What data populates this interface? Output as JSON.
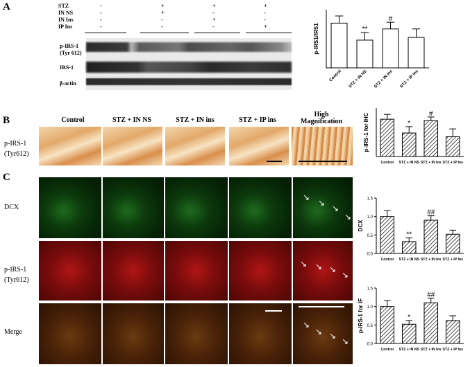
{
  "panel_letters": {
    "a": "A",
    "b": "B",
    "c": "C"
  },
  "panel_a": {
    "treatment_rows": [
      {
        "name": "STZ",
        "signs": [
          "-",
          "+",
          "+",
          "+"
        ]
      },
      {
        "name": "IN NS",
        "signs": [
          "-",
          "+",
          "-",
          "-"
        ]
      },
      {
        "name": "IN Ins",
        "signs": [
          "-",
          "-",
          "+",
          "-"
        ]
      },
      {
        "name": "IP Ins",
        "signs": [
          "-",
          "-",
          "-",
          "+"
        ]
      }
    ],
    "blot_labels": {
      "pirs": "p-IRS-1",
      "pirs_site": "(Tyr 612)",
      "irs": "IRS-1",
      "actin": "β-actin"
    }
  },
  "panel_b": {
    "columns": [
      "Control",
      "STZ + IN NS",
      "STZ + IN ins",
      "STZ + IP ins"
    ],
    "hm_title_1": "High",
    "hm_title_2": "Magnification",
    "row_label_1": "p-IRS-1",
    "row_label_2": "(Tyr612)"
  },
  "panel_c": {
    "rows": [
      {
        "label_1": "DCX",
        "label_2": ""
      },
      {
        "label_1": "p-IRS-1",
        "label_2": "(Tyr612)"
      },
      {
        "label_1": "Merge",
        "label_2": ""
      }
    ]
  },
  "colors": {
    "bar_fill": "#ffffff",
    "bar_stroke": "#000000",
    "hatch": "#000000"
  },
  "chart_data": [
    {
      "type": "bar",
      "categories": [
        "Control",
        "STZ + IN NS",
        "STZ + IN Ins",
        "STZ + IP Ins"
      ],
      "values": [
        1.0,
        0.62,
        0.87,
        0.68
      ],
      "errors": [
        0.16,
        0.17,
        0.15,
        0.19
      ],
      "annotations": [
        "",
        "**",
        "#",
        ""
      ],
      "ylabel": "p-IRS1/IRS1",
      "ylim": [
        0,
        1.3
      ],
      "hatched": false
    },
    {
      "type": "bar",
      "categories": [
        "Control",
        "STZ + IN NS",
        "STZ + IN Ins",
        "STZ + IP Ins"
      ],
      "values": [
        1.0,
        0.63,
        0.96,
        0.53
      ],
      "errors": [
        0.13,
        0.17,
        0.1,
        0.21
      ],
      "annotations": [
        "",
        "*",
        "#",
        ""
      ],
      "ylabel": "p-IRS-1 for IHC",
      "ylim": [
        0,
        1.3
      ],
      "hatched": true
    },
    {
      "type": "bar",
      "categories": [
        "Control",
        "STZ + IN NS",
        "STZ + IN Ins",
        "STZ + IP Ins"
      ],
      "values": [
        1.0,
        0.32,
        0.9,
        0.52
      ],
      "errors": [
        0.16,
        0.1,
        0.12,
        0.11
      ],
      "annotations": [
        "",
        "**",
        "##",
        ""
      ],
      "ylabel": "DCX",
      "yticks": [
        0.0,
        0.5,
        1.0,
        1.5
      ],
      "ylim": [
        0,
        1.5
      ],
      "hatched": true
    },
    {
      "type": "bar",
      "categories": [
        "Control",
        "STZ + IN NS",
        "STZ + IN Ins",
        "STZ + IP Ins"
      ],
      "values": [
        1.0,
        0.52,
        1.1,
        0.62
      ],
      "errors": [
        0.16,
        0.1,
        0.13,
        0.13
      ],
      "annotations": [
        "",
        "*",
        "##",
        ""
      ],
      "ylabel": "p-IRS-1 for IF",
      "yticks": [
        0.0,
        0.5,
        1.0,
        1.5
      ],
      "ylim": [
        0,
        1.5
      ],
      "hatched": true
    }
  ]
}
